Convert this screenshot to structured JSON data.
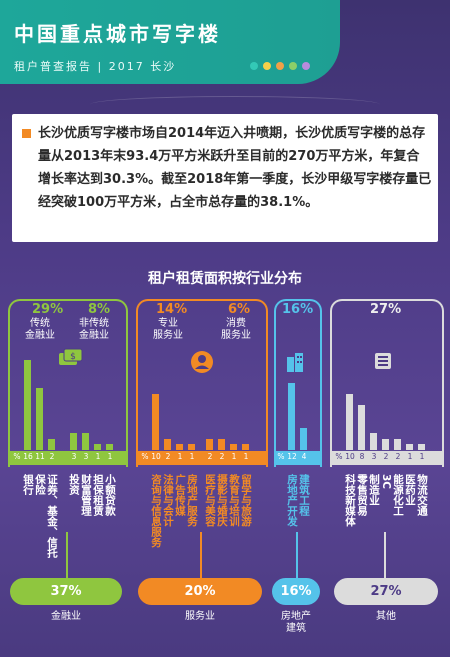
{
  "header": {
    "title": "中国重点城市写字楼",
    "subtitle": "租户普查报告 | 2017 长沙",
    "dot_colors": [
      "#33c9b6",
      "#f5d04a",
      "#f0a047",
      "#8bcf68",
      "#b98bdc"
    ]
  },
  "intro": {
    "text": "长沙优质写字楼市场自2014年迈入井喷期，长沙优质写字楼的总存量从2013年末93.4万平方米跃升至目前的270万平方米，年复合增长率达到30.3%。截至2018年第一季度，长沙甲级写字楼存量已经突破100万平方米，占全市总存量的38.1%。"
  },
  "chart_data": {
    "type": "bar",
    "title": "租户租赁面积按行业分布",
    "unit": "%",
    "sectors": [
      {
        "name": "金融业",
        "total": "37%",
        "color": "#8fc63f",
        "groups": [
          {
            "pct": "29%",
            "name": [
              "传统",
              "金融业"
            ],
            "categories": [
              "银行",
              "保险",
              "证券、基金、信托"
            ],
            "values": [
              16,
              11,
              2
            ]
          },
          {
            "pct": "8%",
            "name": [
              "非传统",
              "金融业"
            ],
            "categories": [
              "投资",
              "财富管理",
              "担保租赁",
              "小额贷款"
            ],
            "values": [
              3,
              3,
              1,
              1
            ]
          }
        ]
      },
      {
        "name": "服务业",
        "total": "20%",
        "color": "#f28a24",
        "groups": [
          {
            "pct": "14%",
            "name": [
              "专业",
              "服务业"
            ],
            "categories": [
              "咨询与信息服务",
              "法律与会计",
              "广告传媒",
              "房地产服务"
            ],
            "values": [
              10,
              2,
              1,
              1
            ]
          },
          {
            "pct": "6%",
            "name": [
              "消费",
              "服务业"
            ],
            "categories": [
              "医疗与美容",
              "摄影与婚庆",
              "教育与培训",
              "留学与旅游"
            ],
            "values": [
              2,
              2,
              1,
              1
            ]
          }
        ]
      },
      {
        "name": "房地产\n建筑",
        "total": "16%",
        "color": "#55c3ea",
        "groups": [
          {
            "pct": "16%",
            "name": [],
            "categories": [
              "房地产开发",
              "建筑工程"
            ],
            "values": [
              12,
              4
            ]
          }
        ]
      },
      {
        "name": "其他",
        "total": "27%",
        "color": "#dcdcdc",
        "groups": [
          {
            "pct": "27%",
            "name": [],
            "categories": [
              "科技新媒体",
              "零售贸易",
              "制造业",
              "3C",
              "能源化工",
              "医药业",
              "物流交通"
            ],
            "values": [
              10,
              8,
              3,
              2,
              2,
              1,
              1
            ]
          }
        ]
      }
    ]
  },
  "summary": {
    "finance": {
      "pct": "37%",
      "label": "金融业"
    },
    "service": {
      "pct": "20%",
      "label": "服务业"
    },
    "realestate": {
      "pct": "16%",
      "label_1": "房地产",
      "label_2": "建筑"
    },
    "other": {
      "pct": "27%",
      "label": "其他"
    }
  },
  "icons": [
    "money-icon",
    "person-icon",
    "building-icon",
    "list-icon"
  ]
}
